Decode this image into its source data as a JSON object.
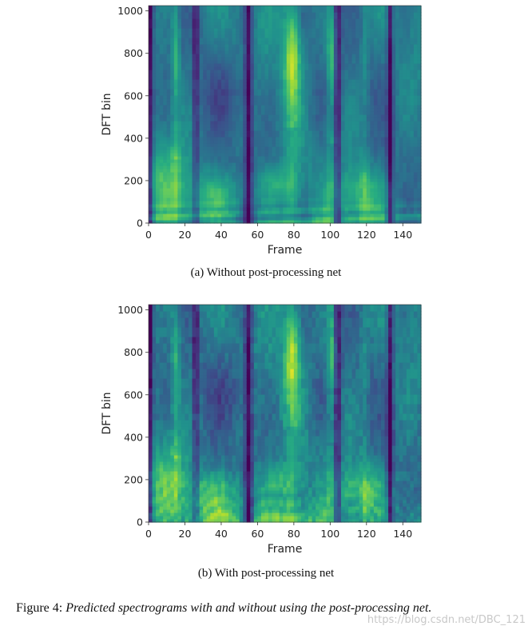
{
  "chart_data": [
    {
      "type": "heatmap",
      "id": "a",
      "caption": "(a) Without post-processing net",
      "xlabel": "Frame",
      "ylabel": "DFT bin",
      "xlim": [
        0,
        150
      ],
      "ylim": [
        0,
        1025
      ],
      "xticks": [
        0,
        20,
        40,
        60,
        80,
        100,
        120,
        140
      ],
      "yticks": [
        0,
        200,
        400,
        600,
        800,
        1000
      ],
      "colormap": "viridis",
      "post_processing": false
    },
    {
      "type": "heatmap",
      "id": "b",
      "caption": "(b) With post-processing net",
      "xlabel": "Frame",
      "ylabel": "DFT bin",
      "xlim": [
        0,
        150
      ],
      "ylim": [
        0,
        1025
      ],
      "xticks": [
        0,
        20,
        40,
        60,
        80,
        100,
        120,
        140
      ],
      "yticks": [
        0,
        200,
        400,
        600,
        800,
        1000
      ],
      "colormap": "viridis",
      "post_processing": true
    }
  ],
  "figure_caption": {
    "label": "Figure 4:",
    "text": "Predicted spectrograms with and without using the post-processing net."
  },
  "watermark": "https://blog.csdn.net/DBC_121"
}
